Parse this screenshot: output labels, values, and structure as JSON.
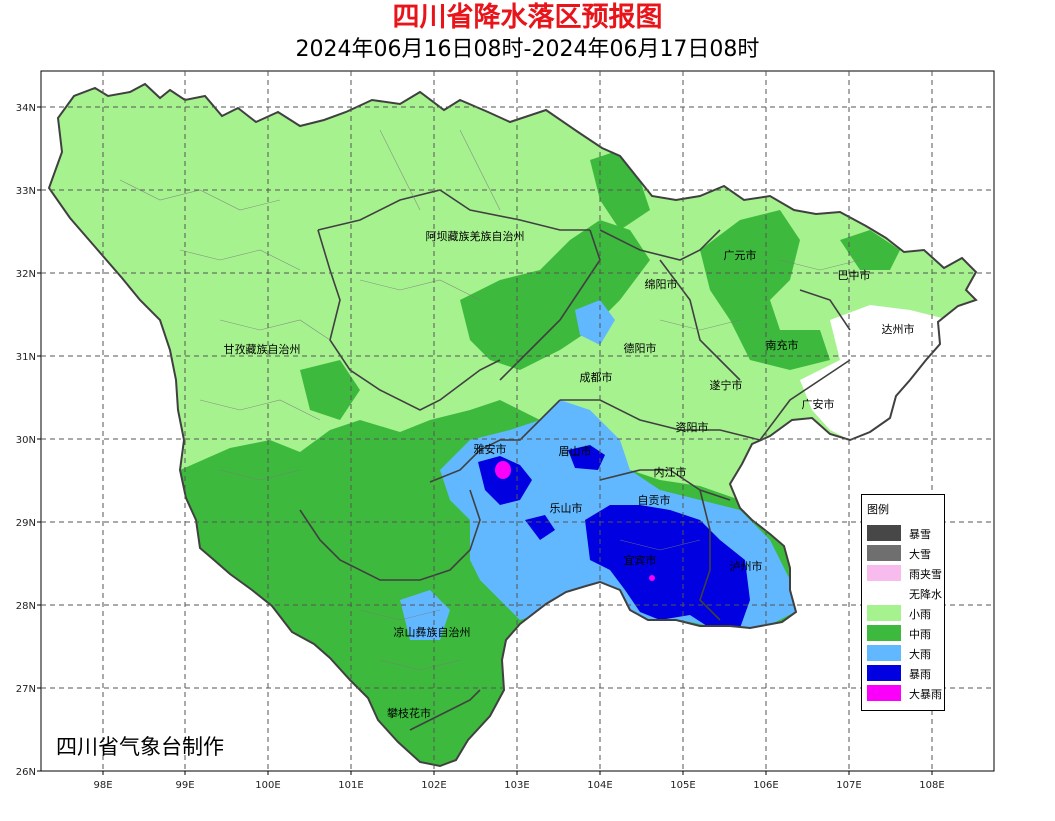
{
  "title": "四川省降水落区预报图",
  "subtitle": "2024年06月16日08时-2024年06月17日08时",
  "producer": "四川省气象台制作",
  "axes": {
    "x_ticks": [
      "98E",
      "99E",
      "100E",
      "101E",
      "102E",
      "103E",
      "104E",
      "105E",
      "106E",
      "107E",
      "108E"
    ],
    "y_ticks": [
      "34N",
      "33N",
      "32N",
      "31N",
      "30N",
      "29N",
      "28N",
      "27N",
      "26N"
    ]
  },
  "legend": {
    "title": "图例",
    "items": [
      {
        "label": "暴雪",
        "color": "#474747"
      },
      {
        "label": "大雪",
        "color": "#6f6f6f"
      },
      {
        "label": "雨夹雪",
        "color": "#f8bbee"
      },
      {
        "label": "无降水",
        "color": "#ffffff"
      },
      {
        "label": "小雨",
        "color": "#a6f28f"
      },
      {
        "label": "中雨",
        "color": "#3dba3d"
      },
      {
        "label": "大雨",
        "color": "#61b8ff"
      },
      {
        "label": "暴雨",
        "color": "#0000e1"
      },
      {
        "label": "大暴雨",
        "color": "#fa00fa"
      }
    ]
  },
  "regions": [
    {
      "id": "aba",
      "label": "阿坝藏族羌族自治州"
    },
    {
      "id": "ganzi",
      "label": "甘孜藏族自治州"
    },
    {
      "id": "liangshan",
      "label": "凉山彝族自治州"
    },
    {
      "id": "panzhihua",
      "label": "攀枝花市"
    },
    {
      "id": "guangyuan",
      "label": "广元市"
    },
    {
      "id": "bazhong",
      "label": "巴中市"
    },
    {
      "id": "mianyang",
      "label": "绵阳市"
    },
    {
      "id": "dazhou",
      "label": "达州市"
    },
    {
      "id": "deyang",
      "label": "德阳市"
    },
    {
      "id": "nanchong",
      "label": "南充市"
    },
    {
      "id": "chengdu",
      "label": "成都市"
    },
    {
      "id": "suining",
      "label": "遂宁市"
    },
    {
      "id": "guangan",
      "label": "广安市"
    },
    {
      "id": "ziyang",
      "label": "资阳市"
    },
    {
      "id": "yaan",
      "label": "雅安市"
    },
    {
      "id": "meishan",
      "label": "眉山市"
    },
    {
      "id": "neijiang",
      "label": "内江市"
    },
    {
      "id": "leshan",
      "label": "乐山市"
    },
    {
      "id": "zigong",
      "label": "自贡市"
    },
    {
      "id": "yibin",
      "label": "宜宾市"
    },
    {
      "id": "luzhou",
      "label": "泸州市"
    }
  ],
  "colors": {
    "title": "#e8141a",
    "light_rain": "#a6f28f",
    "moderate_rain": "#3dba3d",
    "heavy_rain": "#61b8ff",
    "rainstorm": "#0000e1",
    "severe_rainstorm": "#fa00fa",
    "no_rain": "#ffffff",
    "grid": "#555555",
    "boundary": "#404040"
  }
}
